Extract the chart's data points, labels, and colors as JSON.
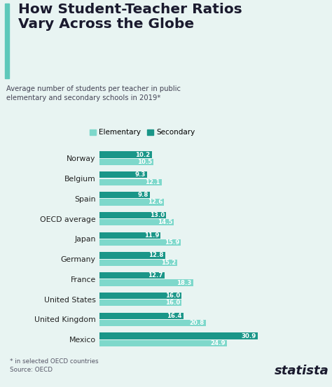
{
  "title": "How Student-Teacher Ratios\nVary Across the Globe",
  "subtitle": "Average number of students per teacher in public\nelementary and secondary schools in 2019*",
  "footnote": "* in selected OECD countries\nSource: OECD",
  "legend_labels": [
    "Elementary",
    "Secondary"
  ],
  "elementary_color": "#7ed8cb",
  "secondary_color": "#1a9688",
  "background_color": "#e8f4f2",
  "title_bg_color": "#ffffff",
  "countries": [
    "Norway",
    "Belgium",
    "Spain",
    "OECD average",
    "Japan",
    "Germany",
    "France",
    "United States",
    "United Kingdom",
    "Mexico"
  ],
  "elementary": [
    10.5,
    12.1,
    12.6,
    14.5,
    15.9,
    15.2,
    18.3,
    16.0,
    20.8,
    24.9
  ],
  "secondary": [
    10.2,
    9.3,
    9.8,
    13.0,
    11.9,
    12.8,
    12.7,
    16.0,
    16.4,
    30.9
  ],
  "title_color": "#1a1a2e",
  "subtitle_color": "#444455",
  "bar_height": 0.32,
  "bar_gap": 0.04,
  "accent_color": "#5ec8ba",
  "title_bar_color": "#5ec8ba",
  "label_color_inside": "#ffffff",
  "label_color_outside": "#333333",
  "footnote_color": "#555566",
  "statista_color": "#1a1a2e"
}
